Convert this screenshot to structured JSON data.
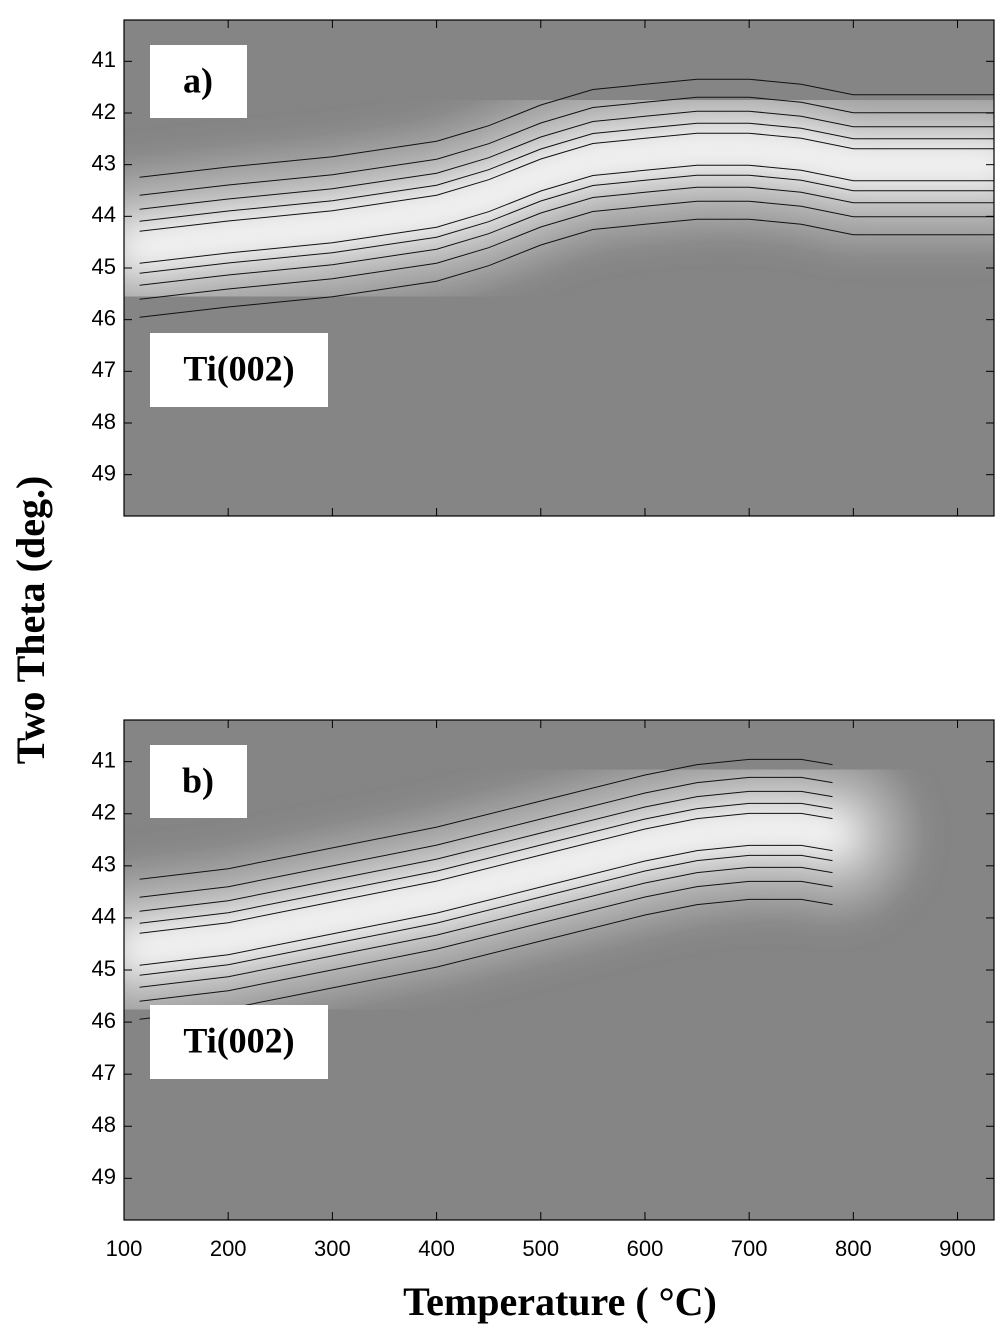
{
  "chart_data": [
    {
      "type": "contour",
      "panel_label": "a)",
      "annotation": "Ti(002)",
      "y_label": "Two Theta (deg.)",
      "xlim": [
        100,
        935
      ],
      "xticks": [
        100,
        200,
        300,
        400,
        500,
        600,
        700,
        800,
        900
      ],
      "show_xtick_labels": false,
      "ylim": [
        49.8,
        40.2
      ],
      "yticks": [
        41,
        42,
        43,
        44,
        45,
        46,
        47,
        48,
        49
      ],
      "x": [
        115,
        200,
        300,
        400,
        450,
        500,
        550,
        600,
        650,
        700,
        750,
        800,
        900,
        935
      ],
      "values": [
        44.6,
        44.4,
        44.2,
        43.9,
        43.6,
        43.2,
        42.9,
        42.8,
        42.7,
        42.7,
        42.8,
        43.0,
        43.0,
        43.0
      ]
    },
    {
      "type": "contour",
      "panel_label": "b)",
      "annotation": "Ti(002)",
      "x_label": "Temperature ( °C)",
      "xlim": [
        100,
        935
      ],
      "xticks": [
        100,
        200,
        300,
        400,
        500,
        600,
        700,
        800,
        900
      ],
      "show_xtick_labels": true,
      "ylim": [
        49.8,
        40.2
      ],
      "yticks": [
        41,
        42,
        43,
        44,
        45,
        46,
        47,
        48,
        49
      ],
      "x": [
        115,
        200,
        300,
        400,
        500,
        600,
        650,
        700,
        750,
        780
      ],
      "values": [
        44.6,
        44.4,
        44.0,
        43.6,
        43.1,
        42.6,
        42.4,
        42.3,
        42.3,
        42.4
      ]
    }
  ]
}
